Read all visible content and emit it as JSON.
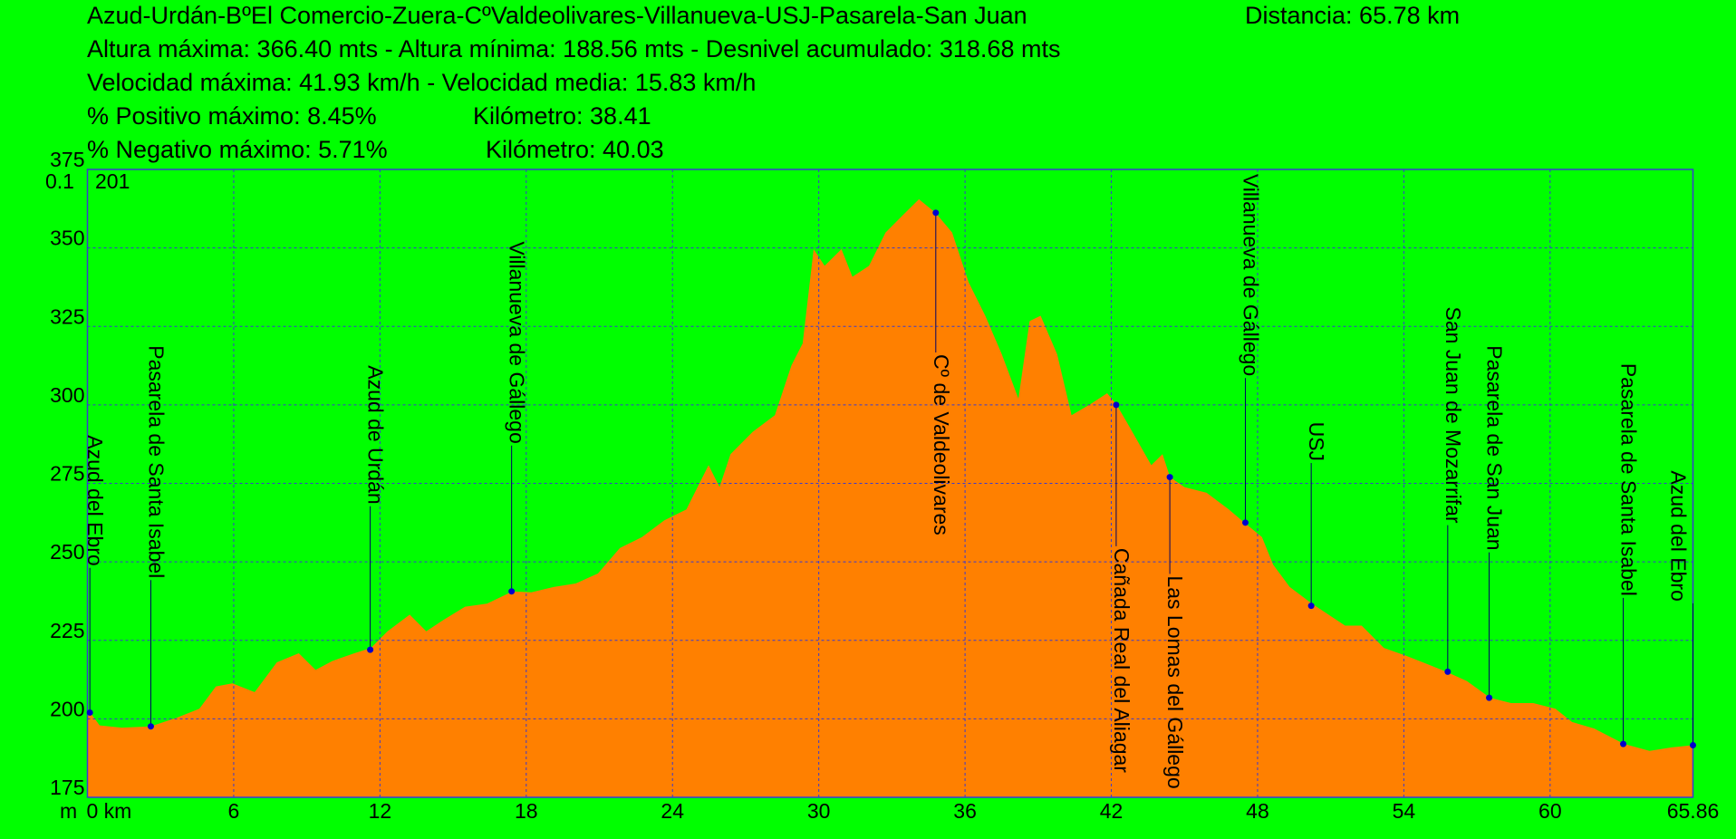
{
  "header": {
    "title": "Azud-Urdán-BºEl Comercio-Zuera-CºValdeolivares-Villanueva-USJ-Pasarela-San Juan",
    "distance": "Distancia: 65.78 km",
    "altitude": "Altura máxima: 366.40 mts - Altura mínima: 188.56 mts - Desnivel acumulado: 318.68 mts",
    "speed": "Velocidad máxima: 41.93 km/h - Velocidad media: 15.83 km/h",
    "positive": "% Positivo máximo: 8.45%",
    "positive_km": "Kilómetro: 38.41",
    "negative": "% Negativo máximo: 5.71%",
    "negative_km": "Kilómetro: 40.03"
  },
  "chart_data": {
    "type": "area",
    "x": [
      0,
      0.5,
      1.41,
      2.59,
      3.68,
      4.59,
      5.27,
      5.95,
      6.86,
      7.77,
      8.67,
      9.36,
      10.04,
      10.95,
      11.63,
      12.31,
      13.22,
      13.9,
      14.58,
      15.49,
      16.39,
      17.44,
      18.21,
      19.12,
      20.03,
      20.94,
      21.84,
      22.75,
      23.66,
      24.57,
      25.48,
      25.93,
      26.38,
      27.29,
      28.2,
      28.88,
      29.34,
      29.79,
      30.24,
      30.93,
      31.38,
      32.06,
      32.74,
      33.42,
      34.11,
      34.79,
      35.47,
      36.15,
      36.83,
      37.51,
      38.19,
      38.65,
      39.1,
      39.78,
      40.37,
      41.14,
      41.83,
      42.23,
      42.73,
      43.64,
      44.1,
      44.41,
      45.0,
      45.91,
      46.82,
      47.46,
      48.18,
      48.64,
      49.32,
      50.23,
      50.91,
      51.59,
      52.27,
      53.18,
      54.09,
      55.0,
      55.77,
      56.59,
      57.54,
      58.4,
      59.31,
      60.22,
      60.9,
      61.81,
      63.04,
      64.08,
      64.99,
      65.86
    ],
    "values": [
      203.2,
      197.9,
      197.2,
      197.6,
      200.4,
      203.2,
      210.3,
      211.3,
      208.5,
      218.0,
      220.9,
      215.6,
      218.4,
      220.9,
      222.6,
      227.9,
      233.2,
      227.9,
      231.4,
      235.7,
      236.7,
      240.6,
      240.3,
      242.0,
      243.1,
      246.3,
      254.4,
      257.9,
      263.2,
      266.7,
      280.8,
      273.8,
      284.3,
      291.4,
      296.7,
      312.6,
      319.6,
      349.6,
      344.3,
      349.6,
      340.8,
      344.3,
      354.9,
      360.2,
      365.5,
      361.2,
      354.9,
      339.0,
      328.4,
      316.1,
      302.0,
      326.7,
      328.4,
      316.1,
      296.7,
      300.2,
      303.7,
      299.9,
      293.2,
      280.8,
      284.3,
      277.0,
      273.8,
      272.0,
      266.7,
      262.5,
      257.9,
      249.1,
      242.0,
      236.7,
      233.2,
      229.7,
      229.7,
      222.6,
      220.1,
      217.3,
      214.9,
      212.0,
      206.7,
      205.0,
      205.0,
      203.2,
      199.0,
      196.9,
      192.0,
      189.8,
      190.9,
      191.6
    ],
    "color": "#ff8000",
    "xlim": [
      0,
      65.86
    ],
    "ylim": [
      175,
      375
    ],
    "xticks": [
      {
        "value": 0,
        "label": "0 km"
      },
      6,
      12,
      18,
      24,
      30,
      36,
      42,
      48,
      54,
      60,
      65.86
    ],
    "yticks": [
      175,
      200,
      225,
      250,
      275,
      300,
      325,
      350,
      375
    ],
    "grid": true,
    "grid_color": "#3a3ad0",
    "y_unit": "m",
    "corner_labels": [
      "0.1",
      "201"
    ],
    "waypoints": {
      "names": [
        "Azud del Ebro",
        "Pasarela de Santa Isabel",
        "Azud de Urdán",
        "Villanueva de Gállego",
        "Cº de Valdeolivares",
        "Cañada Real del Aliagar",
        "Las Lomas del Gállego",
        "Villanueva de Gállego",
        "USJ",
        "San Juan de Mozarrifar",
        "Pasarela de San Juan",
        "Pasarela de Santa Isabel",
        "Azud del Ebro"
      ],
      "x": [
        0.1,
        2.6,
        11.6,
        17.4,
        34.8,
        42.2,
        44.4,
        47.5,
        50.2,
        55.8,
        57.5,
        63.0,
        65.86
      ],
      "y": [
        202,
        197.6,
        222,
        240.6,
        361.2,
        300,
        277,
        262.5,
        236,
        215,
        206.7,
        192,
        191.6
      ],
      "color": "#0000cc"
    }
  }
}
